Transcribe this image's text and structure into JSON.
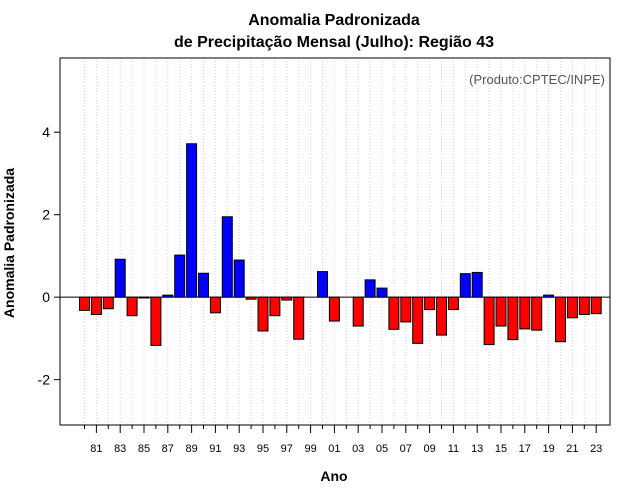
{
  "chart_data": {
    "type": "bar",
    "title": "Anomalia Padronizada",
    "subtitle": "de Precipitação Mensal (Julho): Região 43",
    "xlabel": "Ano",
    "ylabel": "Anomalia Padronizada",
    "annotation": "(Produto:CPTEC/INPE)",
    "ylim": [
      -3.1,
      5.8
    ],
    "y_ticks": [
      -2,
      0,
      2,
      4
    ],
    "y_tick_labels": [
      "-2",
      "0",
      "2",
      "4"
    ],
    "grid": "vertical dotted",
    "colors": {
      "positive": "#0000ff",
      "negative": "#ff0000",
      "zero_line": "#000000"
    },
    "categories": [
      "80",
      "81",
      "82",
      "83",
      "84",
      "85",
      "86",
      "87",
      "88",
      "89",
      "90",
      "91",
      "92",
      "93",
      "94",
      "95",
      "96",
      "97",
      "98",
      "99",
      "00",
      "01",
      "02",
      "03",
      "04",
      "05",
      "06",
      "07",
      "08",
      "09",
      "10",
      "11",
      "12",
      "13",
      "14",
      "15",
      "16",
      "17",
      "18",
      "19",
      "20",
      "21",
      "22",
      "23"
    ],
    "x_tick_labels": [
      "81",
      "83",
      "85",
      "87",
      "89",
      "91",
      "93",
      "95",
      "97",
      "99",
      "01",
      "03",
      "05",
      "07",
      "09",
      "11",
      "13",
      "15",
      "17",
      "19",
      "21",
      "23"
    ],
    "values": [
      -0.32,
      -0.42,
      -0.28,
      0.92,
      -0.45,
      -0.02,
      -1.17,
      0.05,
      1.02,
      3.72,
      0.58,
      -0.38,
      1.95,
      0.9,
      -0.05,
      -0.82,
      -0.45,
      -0.07,
      -1.02,
      0.0,
      0.62,
      -0.58,
      0.0,
      -0.7,
      0.42,
      0.22,
      -0.78,
      -0.6,
      -1.12,
      -0.3,
      -0.92,
      -0.3,
      0.57,
      0.6,
      -1.15,
      -0.7,
      -1.03,
      -0.77,
      -0.8,
      0.05,
      -1.08,
      -0.5,
      -0.42,
      -0.4
    ]
  }
}
